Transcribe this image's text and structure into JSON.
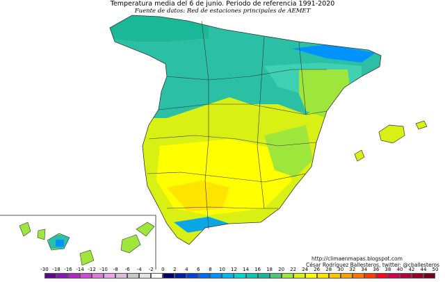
{
  "title": "Temperatura media del 6 de junio. Periodo de referencia 1991-2020",
  "subtitle": "Fuente de datos: Red de estaciones principales de AEMET",
  "credits": {
    "url": "http://climaenmapas.blogspot.com",
    "author": "César Rodríguez Ballesteros, twitter: @cballesteros"
  },
  "legend": {
    "ticks": [
      "-30",
      "-18",
      "-16",
      "-14",
      "-12",
      "-10",
      "-8",
      "-6",
      "-4",
      "-2",
      "0",
      "2",
      "4",
      "6",
      "8",
      "10",
      "12",
      "14",
      "16",
      "18",
      "20",
      "22",
      "24",
      "26",
      "28",
      "30",
      "32",
      "34",
      "36",
      "38",
      "40",
      "42",
      "44",
      "50"
    ],
    "colors": [
      "#5b0a8c",
      "#8a18b6",
      "#b324c9",
      "#cf4ad6",
      "#df79de",
      "#e8a4e4",
      "#d9bcd8",
      "#c8c8c8",
      "#e3e3e3",
      "#ffffff",
      "#00006e",
      "#001fa3",
      "#0046d4",
      "#006df0",
      "#0093ff",
      "#00b7f0",
      "#00d2d6",
      "#00c8b4",
      "#1ab896",
      "#48c878",
      "#9ee63c",
      "#d8f014",
      "#ffff00",
      "#ffe400",
      "#ffc400",
      "#ff9e00",
      "#ff7400",
      "#ff3c00",
      "#f00a28",
      "#d2004c",
      "#b4003c",
      "#960028",
      "#780014"
    ]
  },
  "colors": {
    "cool_north": "#2bbfa5",
    "cool_mid": "#3fd1b2",
    "mild": "#9ee63c",
    "warm": "#d8f014",
    "hot": "#ffff00",
    "hotter": "#ffe400",
    "mountain_blue": "#0aa6e6",
    "border": "#333333"
  }
}
